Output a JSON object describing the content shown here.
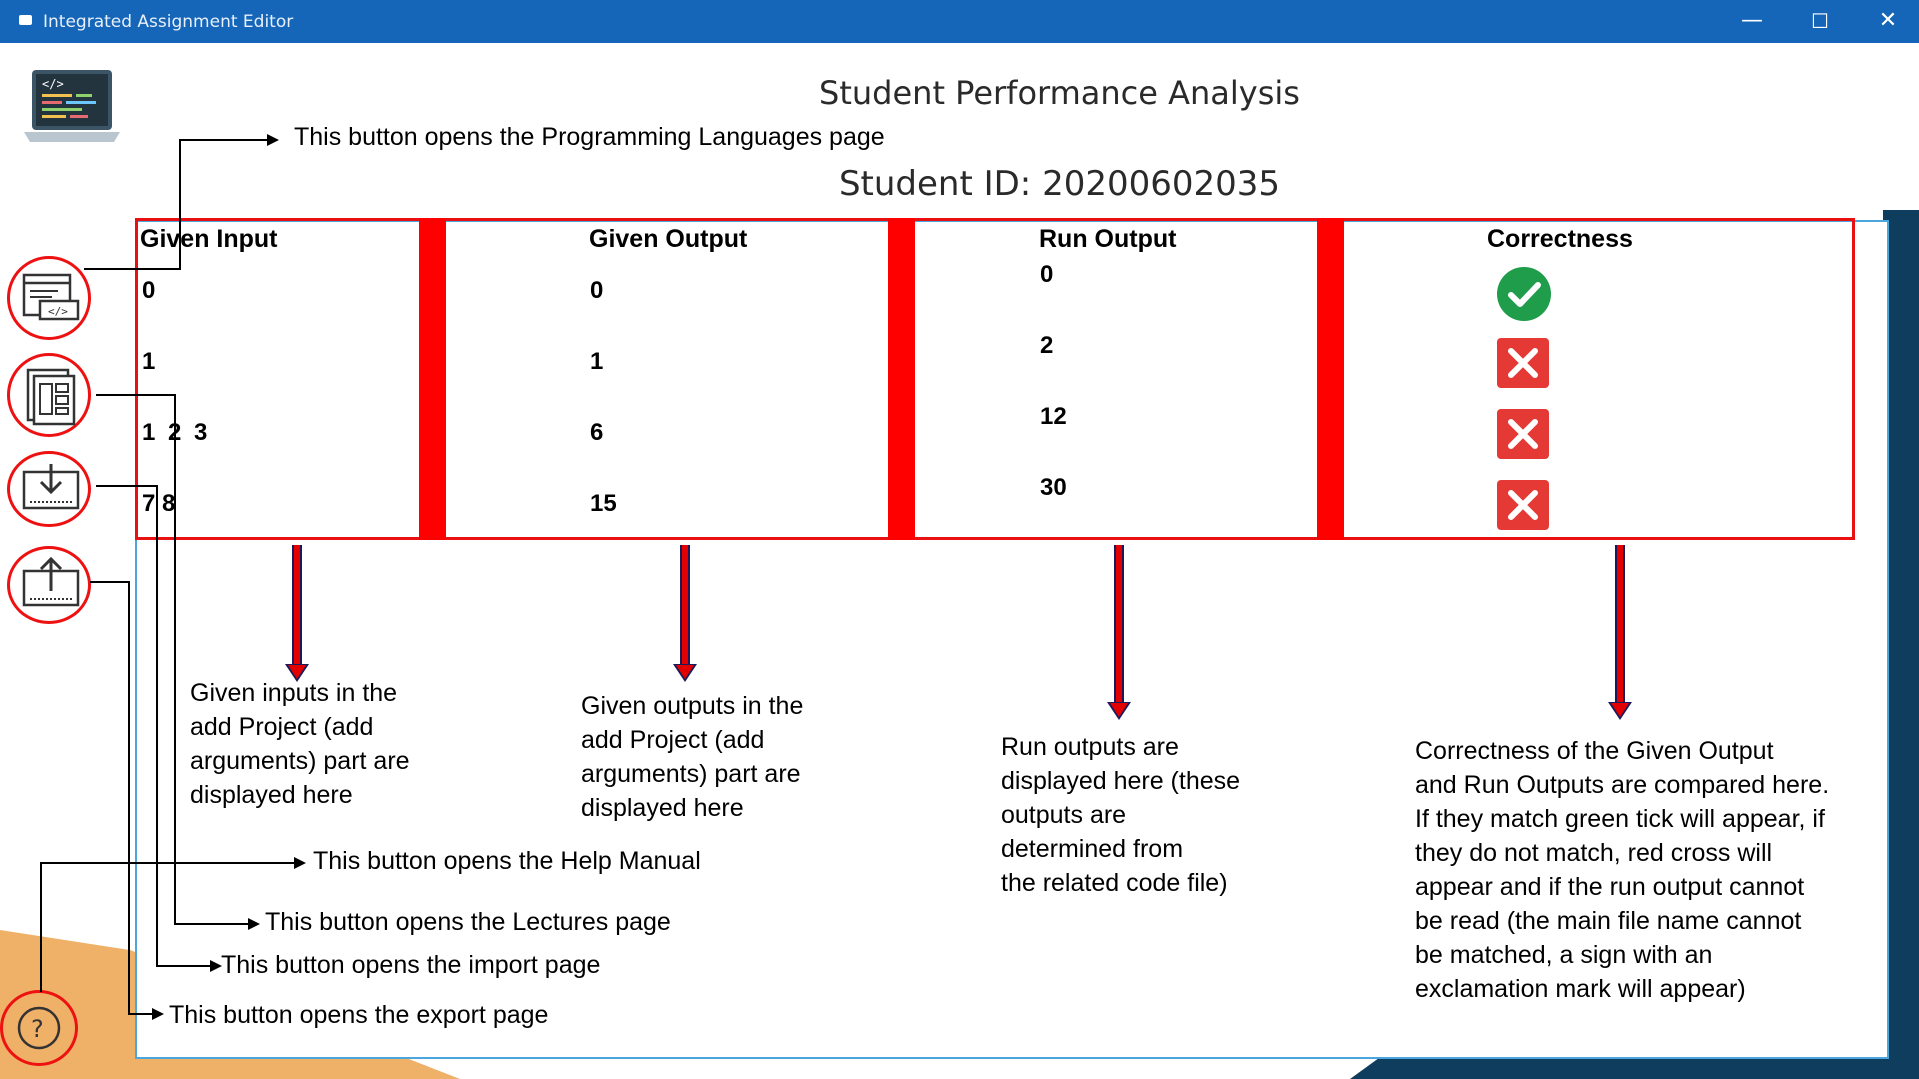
{
  "window": {
    "title": "Integrated Assignment Editor",
    "minimize": "—",
    "maximize": "☐",
    "close": "✕"
  },
  "page": {
    "title": "Student Performance Analysis",
    "student_id": "Student ID: 20200602035"
  },
  "table": {
    "headers": [
      "Given Input",
      "Given Output",
      "Run Output",
      "Correctness"
    ],
    "given_input": [
      "0",
      "1",
      "1 2 3",
      "7 8"
    ],
    "given_output": [
      "0",
      "1",
      "6",
      "15"
    ],
    "run_output": [
      "0",
      "2",
      "12",
      "30"
    ],
    "correctness": [
      "correct",
      "incorrect",
      "incorrect",
      "incorrect"
    ]
  },
  "colors": {
    "titlebar": "#1565b8",
    "highlight_red": "#e81010",
    "tick_green": "#1f9d4a",
    "cross_red": "#e53935"
  },
  "sidebar": {
    "buttons": [
      {
        "name": "programming-languages",
        "icon": "code-window-icon"
      },
      {
        "name": "lectures",
        "icon": "document-layout-icon"
      },
      {
        "name": "import",
        "icon": "download-tray-icon"
      },
      {
        "name": "export",
        "icon": "upload-tray-icon"
      },
      {
        "name": "help",
        "icon": "question-mark-icon"
      }
    ]
  },
  "callouts": {
    "programming_languages": "This button opens the Programming Languages page",
    "help": "This button opens the Help Manual",
    "lectures": "This button opens the Lectures page",
    "import": "This button opens the import page",
    "export": "This button opens the export page"
  },
  "annotations": {
    "given_input": [
      "Given inputs in the",
      "add Project (add",
      "arguments) part are",
      "displayed here"
    ],
    "given_output": [
      "Given outputs in the",
      "add Project (add",
      "arguments) part are",
      "displayed here"
    ],
    "run_output": [
      "Run outputs are",
      "displayed here (these",
      "outputs are",
      "determined from",
      "the related code file)"
    ],
    "correctness": [
      "Correctness of the Given Output",
      "and Run Outputs are compared here.",
      "If they match green tick will appear, if",
      "they do not match, red cross will",
      "appear and if the run output cannot",
      "be read (the main file name cannot",
      "be matched, a sign with an",
      "exclamation mark will appear)"
    ]
  }
}
